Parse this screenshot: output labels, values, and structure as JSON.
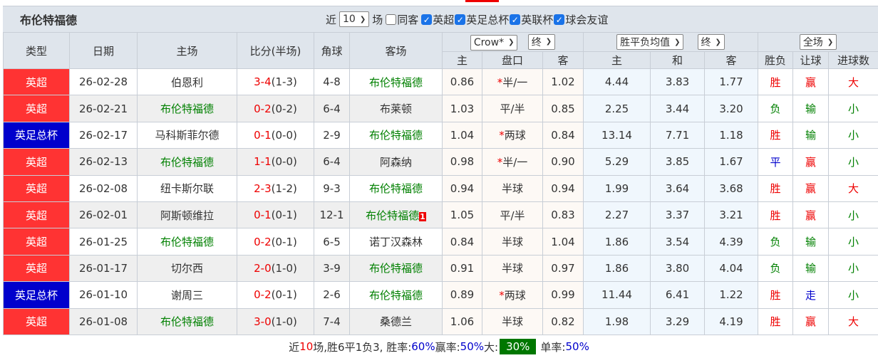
{
  "team": "布伦特福德",
  "filters": {
    "recent_prefix": "近",
    "recent_count": "10",
    "recent_suffix": "场",
    "same_away": "同客",
    "leagues": [
      "英超",
      "英足总杯",
      "英联杯",
      "球会友谊"
    ]
  },
  "colors": {
    "league_red": "#ff3333",
    "league_blue": "#0000cc",
    "team_highlight": "#008000",
    "win": "#ee0000",
    "draw": "#0000cc",
    "loss": "#008000"
  },
  "headers": {
    "type": "类型",
    "date": "日期",
    "home": "主场",
    "score": "比分(半场)",
    "corner": "角球",
    "away": "客场",
    "ah_company": "Crow*",
    "ah_stage": "终",
    "eu_type": "胜平负均值",
    "eu_stage": "终",
    "scope": "全场",
    "ah_home": "主",
    "ah_line": "盘口",
    "ah_away": "客",
    "eu_home": "主",
    "eu_draw": "和",
    "eu_away": "客",
    "res": "胜负",
    "handicap": "让球",
    "goals": "进球数"
  },
  "rows": [
    {
      "league": "英超",
      "lc": "red",
      "date": "26-02-28",
      "home": "伯恩利",
      "hh": false,
      "score": "3-4",
      "half": "(1-3)",
      "corner": "4-8",
      "away": "布伦特福德",
      "ah": true,
      "card": "",
      "o1": "0.86",
      "star": "*",
      "line": "半/一",
      "o2": "1.02",
      "e1": "4.44",
      "e2": "3.83",
      "e3": "1.77",
      "res": "胜",
      "hc": "赢",
      "goals": "大"
    },
    {
      "league": "英超",
      "lc": "red",
      "date": "26-02-21",
      "home": "布伦特福德",
      "hh": true,
      "score": "0-2",
      "half": "(0-2)",
      "corner": "6-4",
      "away": "布莱顿",
      "ah": false,
      "card": "",
      "o1": "1.03",
      "star": "",
      "line": "平/半",
      "o2": "0.85",
      "e1": "2.25",
      "e2": "3.44",
      "e3": "3.20",
      "res": "负",
      "hc": "输",
      "goals": "小"
    },
    {
      "league": "英足总杯",
      "lc": "blue",
      "date": "26-02-17",
      "home": "马科斯菲尔德",
      "hh": false,
      "score": "0-1",
      "half": "(0-0)",
      "corner": "2-9",
      "away": "布伦特福德",
      "ah": true,
      "card": "",
      "o1": "1.04",
      "star": "*",
      "line": "两球",
      "o2": "0.84",
      "e1": "13.14",
      "e2": "7.71",
      "e3": "1.18",
      "res": "胜",
      "hc": "输",
      "goals": "小"
    },
    {
      "league": "英超",
      "lc": "red",
      "date": "26-02-13",
      "home": "布伦特福德",
      "hh": true,
      "score": "1-1",
      "half": "(0-0)",
      "corner": "6-4",
      "away": "阿森纳",
      "ah": false,
      "card": "",
      "o1": "0.98",
      "star": "*",
      "line": "半/一",
      "o2": "0.90",
      "e1": "5.29",
      "e2": "3.85",
      "e3": "1.67",
      "res": "平",
      "hc": "赢",
      "goals": "小"
    },
    {
      "league": "英超",
      "lc": "red",
      "date": "26-02-08",
      "home": "纽卡斯尔联",
      "hh": false,
      "score": "2-3",
      "half": "(1-2)",
      "corner": "9-3",
      "away": "布伦特福德",
      "ah": true,
      "card": "",
      "o1": "0.94",
      "star": "",
      "line": "半球",
      "o2": "0.94",
      "e1": "1.99",
      "e2": "3.64",
      "e3": "3.68",
      "res": "胜",
      "hc": "赢",
      "goals": "大"
    },
    {
      "league": "英超",
      "lc": "red",
      "date": "26-02-01",
      "home": "阿斯顿维拉",
      "hh": false,
      "score": "0-1",
      "half": "(0-1)",
      "corner": "12-1",
      "away": "布伦特福德",
      "ah": true,
      "card": "1",
      "o1": "1.05",
      "star": "",
      "line": "平/半",
      "o2": "0.83",
      "e1": "2.27",
      "e2": "3.37",
      "e3": "3.21",
      "res": "胜",
      "hc": "赢",
      "goals": "小"
    },
    {
      "league": "英超",
      "lc": "red",
      "date": "26-01-25",
      "home": "布伦特福德",
      "hh": true,
      "score": "0-2",
      "half": "(0-1)",
      "corner": "6-5",
      "away": "诺丁汉森林",
      "ah": false,
      "card": "",
      "o1": "0.84",
      "star": "",
      "line": "半球",
      "o2": "1.04",
      "e1": "1.86",
      "e2": "3.54",
      "e3": "4.39",
      "res": "负",
      "hc": "输",
      "goals": "小"
    },
    {
      "league": "英超",
      "lc": "red",
      "date": "26-01-17",
      "home": "切尔西",
      "hh": false,
      "score": "2-0",
      "half": "(1-0)",
      "corner": "3-9",
      "away": "布伦特福德",
      "ah": true,
      "card": "",
      "o1": "0.91",
      "star": "",
      "line": "半球",
      "o2": "0.97",
      "e1": "1.86",
      "e2": "3.80",
      "e3": "4.04",
      "res": "负",
      "hc": "输",
      "goals": "小"
    },
    {
      "league": "英足总杯",
      "lc": "blue",
      "date": "26-01-10",
      "home": "谢周三",
      "hh": false,
      "score": "0-2",
      "half": "(0-1)",
      "corner": "2-6",
      "away": "布伦特福德",
      "ah": true,
      "card": "",
      "o1": "0.89",
      "star": "*",
      "line": "两球",
      "o2": "0.99",
      "e1": "11.44",
      "e2": "6.41",
      "e3": "1.22",
      "res": "胜",
      "hc": "走",
      "goals": "小"
    },
    {
      "league": "英超",
      "lc": "red",
      "date": "26-01-08",
      "home": "布伦特福德",
      "hh": true,
      "score": "3-0",
      "half": "(1-0)",
      "corner": "7-4",
      "away": "桑德兰",
      "ah": false,
      "card": "",
      "o1": "1.06",
      "star": "",
      "line": "半球",
      "o2": "0.82",
      "e1": "1.98",
      "e2": "3.29",
      "e3": "4.19",
      "res": "胜",
      "hc": "赢",
      "goals": "大"
    }
  ],
  "footer": {
    "p1": "近",
    "n": "10",
    "p2": "场,胜6平1负3, 胜率:",
    "win_rate": "60%",
    "p3": " 赢率:",
    "cover_rate": "50%",
    "p4": " 大:",
    "over_rate": "30%",
    "p5": "单率:",
    "odd_rate": "50%"
  }
}
